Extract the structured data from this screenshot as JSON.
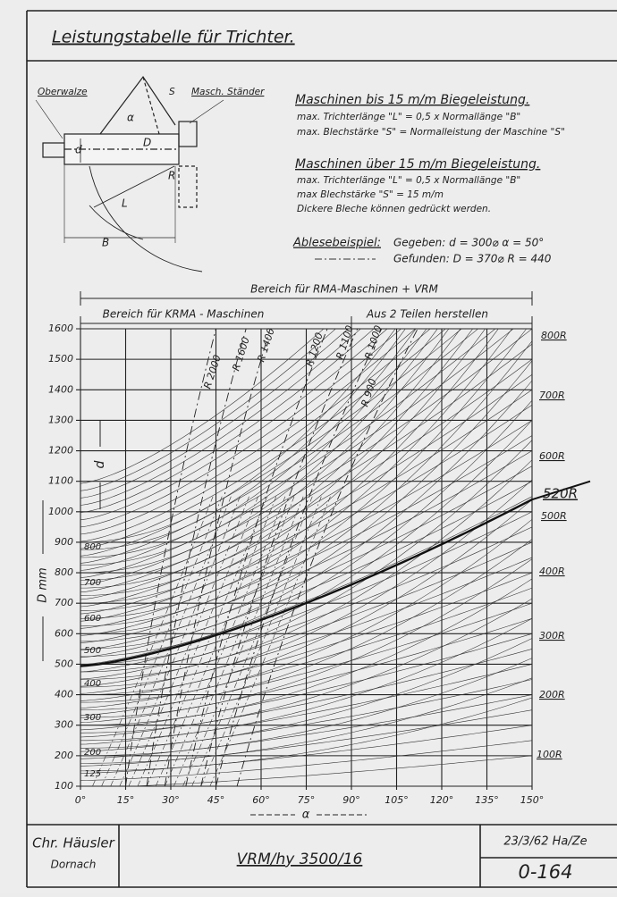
{
  "header": {
    "title": "Leistungstabelle für Trichter."
  },
  "sketch": {
    "roller": "Oberwalze",
    "stand": "Masch. Ständer",
    "s": "S",
    "alpha": "α",
    "D": "D",
    "d": "d",
    "R": "R",
    "L": "L",
    "B": "B"
  },
  "notes": {
    "group1": {
      "heading": "Maschinen bis 15 m/m Biegeleistung.",
      "lines": [
        "max. Trichterlänge \"L\" = 0,5 x Normallänge \"B\"",
        "max. Blechstärke \"S\" = Normalleistung der Maschine \"S\""
      ]
    },
    "group2": {
      "heading": "Maschinen über 15 m/m Biegeleistung.",
      "lines": [
        "max. Trichterlänge \"L\" = 0,5 x Normallänge \"B\"",
        "max Blechstärke \"S\" = 15 m/m",
        "Dickere Bleche können gedrückt werden."
      ]
    },
    "example": {
      "heading": "Ablesebeispiel:",
      "given": "Gegeben: d = 300⌀   α = 50°",
      "found": "Gefunden: D = 370⌀   R = 440"
    }
  },
  "graph": {
    "range_all": "Bereich für RMA-Maschinen + VRM",
    "range_krma": "Bereich für KRMA - Maschinen",
    "range_split": "Aus 2 Teilen herstellen",
    "x_label": "α",
    "y_label": "D mm",
    "d_axis_label": "d",
    "xticks": [
      {
        "value": 0,
        "label": "0°"
      },
      {
        "value": 15,
        "label": "15°"
      },
      {
        "value": 30,
        "label": "30°"
      },
      {
        "value": 45,
        "label": "45°"
      },
      {
        "value": 60,
        "label": "60°"
      },
      {
        "value": 75,
        "label": "75°"
      },
      {
        "value": 90,
        "label": "90°"
      },
      {
        "value": 105,
        "label": "105°"
      },
      {
        "value": 120,
        "label": "120°"
      },
      {
        "value": 135,
        "label": "135°"
      },
      {
        "value": 150,
        "label": "150°"
      }
    ],
    "yticks": [
      100,
      200,
      300,
      400,
      500,
      600,
      700,
      800,
      900,
      1000,
      1100,
      1200,
      1300,
      1400,
      1500,
      1600
    ],
    "d_labels": [
      800,
      700,
      600,
      500,
      400,
      300,
      200,
      125
    ],
    "r_labels_right": [
      "800R",
      "700R",
      "600R",
      "520R",
      "500R",
      "400R",
      "300R",
      "200R",
      "100R"
    ],
    "r_labels_top": [
      "R 2000",
      "R 1600",
      "R 1400",
      "R 1200",
      "R 1100",
      "R 1000",
      "R 900"
    ]
  },
  "footer": {
    "name": "Chr. Häusler",
    "place": "Dornach",
    "drawing": "VRM/hy 3500/16",
    "date": "23/3/62 Ha/Ze",
    "number": "0-164"
  }
}
